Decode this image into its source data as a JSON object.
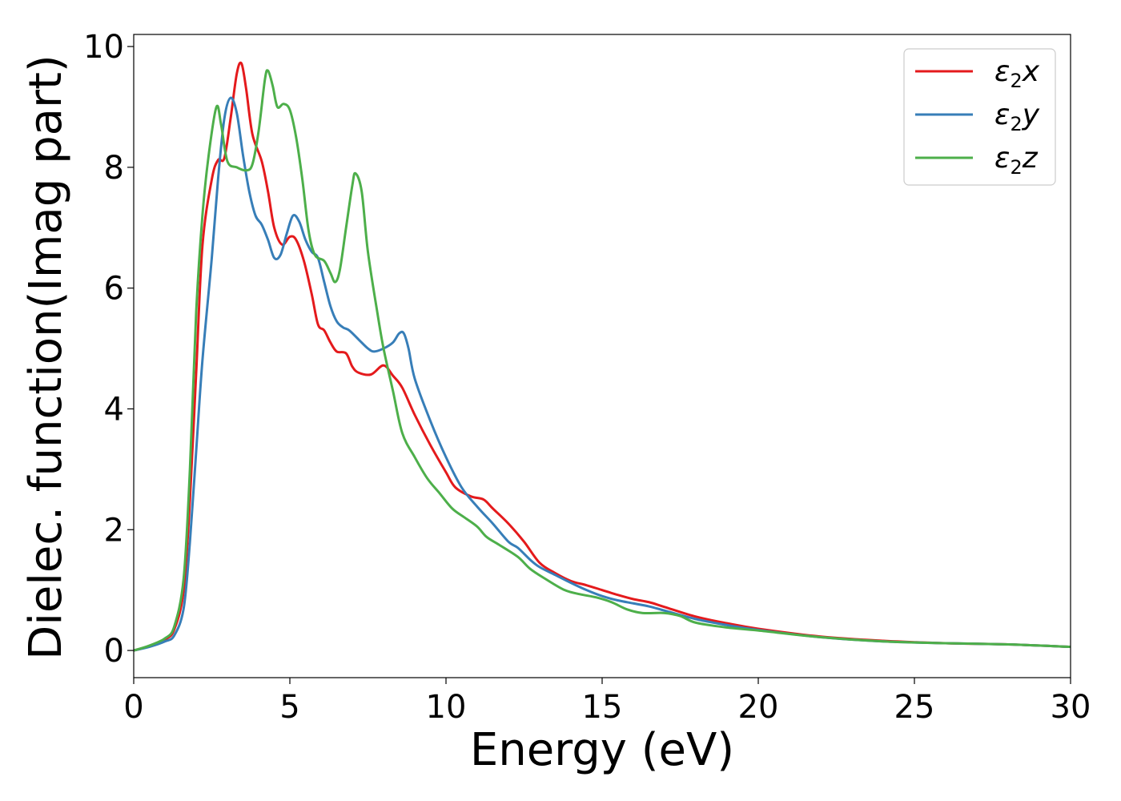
{
  "chart_data": {
    "type": "line",
    "xlabel": "Energy (eV)",
    "ylabel": "Dielec. function(Imag part)",
    "xlim": [
      0,
      30
    ],
    "ylim": [
      -0.45,
      10.2
    ],
    "xticks": [
      0,
      5,
      10,
      15,
      20,
      25,
      30
    ],
    "yticks": [
      0,
      2,
      4,
      6,
      8,
      10
    ],
    "grid": false,
    "legend_position": "top-right",
    "series": [
      {
        "name": "ε2x",
        "legend": {
          "symbol": "ε",
          "sub": "2",
          "axis": "x"
        },
        "color": "#e41a1c",
        "points": [
          [
            0,
            0
          ],
          [
            0.5,
            0.07
          ],
          [
            1.0,
            0.18
          ],
          [
            1.3,
            0.35
          ],
          [
            1.6,
            1.0
          ],
          [
            1.8,
            2.5
          ],
          [
            2.0,
            4.6
          ],
          [
            2.2,
            6.7
          ],
          [
            2.5,
            7.8
          ],
          [
            2.7,
            8.12
          ],
          [
            2.9,
            8.15
          ],
          [
            3.1,
            8.8
          ],
          [
            3.3,
            9.55
          ],
          [
            3.45,
            9.72
          ],
          [
            3.6,
            9.3
          ],
          [
            3.8,
            8.55
          ],
          [
            4.1,
            8.1
          ],
          [
            4.3,
            7.6
          ],
          [
            4.5,
            7.0
          ],
          [
            4.75,
            6.72
          ],
          [
            5.0,
            6.85
          ],
          [
            5.2,
            6.8
          ],
          [
            5.45,
            6.45
          ],
          [
            5.7,
            5.9
          ],
          [
            5.9,
            5.4
          ],
          [
            6.1,
            5.3
          ],
          [
            6.3,
            5.1
          ],
          [
            6.5,
            4.95
          ],
          [
            6.8,
            4.92
          ],
          [
            7.0,
            4.7
          ],
          [
            7.2,
            4.6
          ],
          [
            7.6,
            4.57
          ],
          [
            8.0,
            4.72
          ],
          [
            8.3,
            4.55
          ],
          [
            8.6,
            4.35
          ],
          [
            9.0,
            3.9
          ],
          [
            9.5,
            3.4
          ],
          [
            10.0,
            2.95
          ],
          [
            10.3,
            2.7
          ],
          [
            10.8,
            2.55
          ],
          [
            11.2,
            2.5
          ],
          [
            11.5,
            2.35
          ],
          [
            12.0,
            2.1
          ],
          [
            12.5,
            1.8
          ],
          [
            13.0,
            1.45
          ],
          [
            13.5,
            1.28
          ],
          [
            14.0,
            1.15
          ],
          [
            14.5,
            1.08
          ],
          [
            15.0,
            1.0
          ],
          [
            15.5,
            0.92
          ],
          [
            16.0,
            0.85
          ],
          [
            16.5,
            0.8
          ],
          [
            17.0,
            0.72
          ],
          [
            18.0,
            0.56
          ],
          [
            19.0,
            0.45
          ],
          [
            20.0,
            0.36
          ],
          [
            22.0,
            0.23
          ],
          [
            24.0,
            0.16
          ],
          [
            26.0,
            0.12
          ],
          [
            28.0,
            0.1
          ],
          [
            30.0,
            0.06
          ]
        ]
      },
      {
        "name": "ε2y",
        "legend": {
          "symbol": "ε",
          "sub": "2",
          "axis": "y"
        },
        "color": "#377eb8",
        "points": [
          [
            0,
            0
          ],
          [
            0.5,
            0.06
          ],
          [
            1.0,
            0.15
          ],
          [
            1.3,
            0.25
          ],
          [
            1.6,
            0.7
          ],
          [
            1.8,
            1.8
          ],
          [
            2.0,
            3.3
          ],
          [
            2.2,
            4.8
          ],
          [
            2.5,
            6.5
          ],
          [
            2.7,
            7.8
          ],
          [
            2.9,
            8.8
          ],
          [
            3.1,
            9.15
          ],
          [
            3.3,
            8.9
          ],
          [
            3.5,
            8.2
          ],
          [
            3.7,
            7.6
          ],
          [
            3.9,
            7.2
          ],
          [
            4.1,
            7.05
          ],
          [
            4.3,
            6.8
          ],
          [
            4.5,
            6.5
          ],
          [
            4.7,
            6.55
          ],
          [
            4.9,
            6.9
          ],
          [
            5.1,
            7.2
          ],
          [
            5.3,
            7.1
          ],
          [
            5.5,
            6.8
          ],
          [
            5.7,
            6.6
          ],
          [
            5.9,
            6.5
          ],
          [
            6.1,
            6.1
          ],
          [
            6.3,
            5.7
          ],
          [
            6.5,
            5.45
          ],
          [
            6.7,
            5.35
          ],
          [
            6.9,
            5.3
          ],
          [
            7.2,
            5.15
          ],
          [
            7.5,
            5.0
          ],
          [
            7.7,
            4.95
          ],
          [
            8.0,
            5.0
          ],
          [
            8.3,
            5.1
          ],
          [
            8.5,
            5.25
          ],
          [
            8.65,
            5.25
          ],
          [
            8.8,
            5.0
          ],
          [
            9.0,
            4.5
          ],
          [
            9.5,
            3.8
          ],
          [
            10.0,
            3.2
          ],
          [
            10.5,
            2.7
          ],
          [
            11.0,
            2.38
          ],
          [
            11.5,
            2.1
          ],
          [
            12.0,
            1.8
          ],
          [
            12.3,
            1.7
          ],
          [
            12.7,
            1.5
          ],
          [
            13.0,
            1.38
          ],
          [
            13.5,
            1.25
          ],
          [
            14.0,
            1.12
          ],
          [
            14.5,
            1.0
          ],
          [
            15.0,
            0.9
          ],
          [
            15.5,
            0.83
          ],
          [
            16.0,
            0.78
          ],
          [
            16.5,
            0.73
          ],
          [
            17.0,
            0.66
          ],
          [
            18.0,
            0.52
          ],
          [
            19.0,
            0.42
          ],
          [
            20.0,
            0.34
          ],
          [
            22.0,
            0.22
          ],
          [
            24.0,
            0.15
          ],
          [
            26.0,
            0.12
          ],
          [
            28.0,
            0.1
          ],
          [
            30.0,
            0.06
          ]
        ]
      },
      {
        "name": "ε2z",
        "legend": {
          "symbol": "ε",
          "sub": "2",
          "axis": "z"
        },
        "color": "#4daf4a",
        "points": [
          [
            0,
            0
          ],
          [
            0.5,
            0.08
          ],
          [
            1.0,
            0.2
          ],
          [
            1.3,
            0.4
          ],
          [
            1.6,
            1.2
          ],
          [
            1.8,
            3.0
          ],
          [
            2.0,
            5.6
          ],
          [
            2.2,
            7.2
          ],
          [
            2.4,
            8.2
          ],
          [
            2.65,
            9.0
          ],
          [
            2.8,
            8.7
          ],
          [
            3.0,
            8.1
          ],
          [
            3.3,
            8.0
          ],
          [
            3.6,
            7.95
          ],
          [
            3.8,
            8.05
          ],
          [
            4.0,
            8.6
          ],
          [
            4.2,
            9.45
          ],
          [
            4.3,
            9.6
          ],
          [
            4.45,
            9.35
          ],
          [
            4.6,
            9.0
          ],
          [
            4.8,
            9.05
          ],
          [
            5.0,
            8.95
          ],
          [
            5.2,
            8.5
          ],
          [
            5.4,
            7.8
          ],
          [
            5.6,
            6.95
          ],
          [
            5.8,
            6.55
          ],
          [
            6.1,
            6.45
          ],
          [
            6.3,
            6.25
          ],
          [
            6.45,
            6.1
          ],
          [
            6.6,
            6.3
          ],
          [
            6.8,
            7.0
          ],
          [
            7.0,
            7.7
          ],
          [
            7.1,
            7.9
          ],
          [
            7.3,
            7.6
          ],
          [
            7.5,
            6.6
          ],
          [
            7.8,
            5.6
          ],
          [
            8.0,
            5.0
          ],
          [
            8.3,
            4.3
          ],
          [
            8.6,
            3.6
          ],
          [
            9.0,
            3.2
          ],
          [
            9.4,
            2.85
          ],
          [
            9.8,
            2.6
          ],
          [
            10.2,
            2.35
          ],
          [
            10.6,
            2.2
          ],
          [
            11.0,
            2.05
          ],
          [
            11.3,
            1.88
          ],
          [
            11.7,
            1.75
          ],
          [
            12.3,
            1.55
          ],
          [
            12.7,
            1.35
          ],
          [
            13.2,
            1.18
          ],
          [
            13.8,
            1.0
          ],
          [
            14.3,
            0.93
          ],
          [
            14.8,
            0.88
          ],
          [
            15.3,
            0.8
          ],
          [
            15.8,
            0.68
          ],
          [
            16.3,
            0.62
          ],
          [
            17.0,
            0.62
          ],
          [
            17.5,
            0.57
          ],
          [
            18.0,
            0.46
          ],
          [
            19.0,
            0.38
          ],
          [
            20.0,
            0.33
          ],
          [
            22.0,
            0.22
          ],
          [
            24.0,
            0.15
          ],
          [
            26.0,
            0.12
          ],
          [
            28.0,
            0.1
          ],
          [
            30.0,
            0.06
          ]
        ]
      }
    ]
  }
}
